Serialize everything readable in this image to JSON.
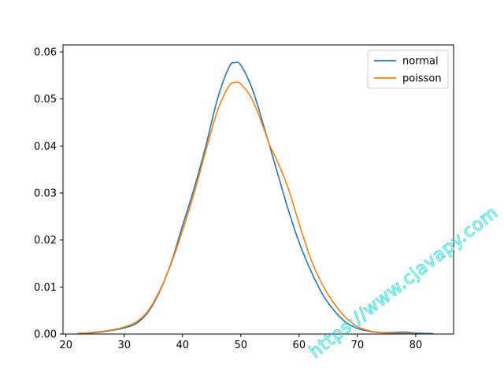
{
  "chart_data": {
    "type": "line",
    "title": "",
    "xlabel": "",
    "ylabel": "",
    "xlim": [
      19.5,
      86.5
    ],
    "ylim": [
      0,
      0.0615
    ],
    "xticks": [
      20,
      30,
      40,
      50,
      60,
      70,
      80
    ],
    "yticks": [
      0.0,
      0.01,
      0.02,
      0.03,
      0.04,
      0.05,
      0.06
    ],
    "ytick_labels": [
      "0.00",
      "0.01",
      "0.02",
      "0.03",
      "0.04",
      "0.05",
      "0.06"
    ],
    "grid": false,
    "legend_position": "top-right",
    "series": [
      {
        "name": "normal",
        "color": "#1f77b4",
        "x": [
          22,
          25,
          28,
          30,
          32,
          34,
          36,
          38,
          40,
          42,
          44,
          46,
          48,
          49,
          50,
          52,
          54,
          56,
          58,
          60,
          62,
          64,
          66,
          68,
          70,
          72,
          74,
          76,
          78,
          80,
          83
        ],
        "y": [
          0.0001,
          0.0003,
          0.0008,
          0.0013,
          0.0022,
          0.0045,
          0.0088,
          0.015,
          0.023,
          0.031,
          0.04,
          0.05,
          0.0568,
          0.0577,
          0.0572,
          0.052,
          0.044,
          0.0355,
          0.027,
          0.0195,
          0.0135,
          0.0085,
          0.005,
          0.0025,
          0.0012,
          0.0006,
          0.0003,
          0.0003,
          0.0004,
          0.0002,
          0.0001
        ]
      },
      {
        "name": "poisson",
        "color": "#ff7f0e",
        "x": [
          22,
          25,
          28,
          30,
          32,
          34,
          36,
          38,
          40,
          42,
          44,
          46,
          48,
          49,
          50,
          52,
          54,
          55,
          56,
          58,
          60,
          62,
          64,
          66,
          68,
          70,
          72,
          74,
          76,
          78,
          80
        ],
        "y": [
          0.0001,
          0.0004,
          0.0009,
          0.0015,
          0.0025,
          0.0048,
          0.009,
          0.0148,
          0.022,
          0.03,
          0.039,
          0.0475,
          0.0528,
          0.0535,
          0.0532,
          0.0498,
          0.0435,
          0.04,
          0.0375,
          0.0315,
          0.0235,
          0.016,
          0.0105,
          0.0065,
          0.0035,
          0.0016,
          0.0007,
          0.0003,
          0.0001,
          0.0001,
          0.0001
        ]
      }
    ]
  },
  "watermark": "https://www.cjavapy.com"
}
